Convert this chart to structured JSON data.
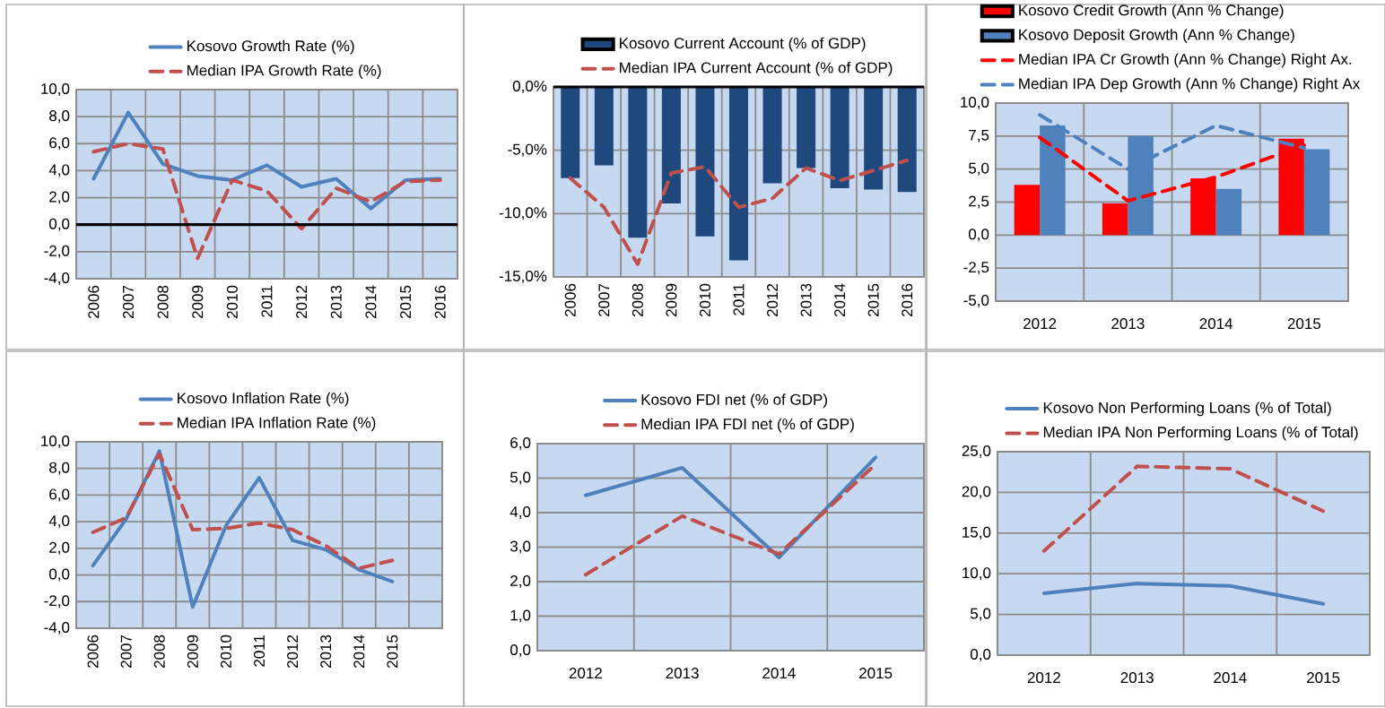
{
  "chart_data": [
    {
      "type": "line",
      "categories": [
        "2006",
        "2007",
        "2008",
        "2009",
        "2010",
        "2011",
        "2012",
        "2013",
        "2014",
        "2015",
        "2016"
      ],
      "series": [
        {
          "name": "Kosovo Growth Rate (%)",
          "color": "#4f81bd",
          "line_style": "solid",
          "values": [
            3.4,
            8.3,
            4.5,
            3.6,
            3.3,
            4.4,
            2.8,
            3.4,
            1.2,
            3.3,
            3.4
          ]
        },
        {
          "name": "Median IPA Growth Rate (%)",
          "color": "#c0504d",
          "line_style": "dashed",
          "values": [
            5.4,
            6.0,
            5.6,
            -2.5,
            3.3,
            2.5,
            -0.3,
            2.7,
            1.7,
            3.2,
            3.3
          ]
        }
      ],
      "ylim": [
        -4,
        10
      ],
      "yticks": [
        {
          "value": -4,
          "label": "-4,0"
        },
        {
          "value": -2,
          "label": "-2,0"
        },
        {
          "value": 0,
          "label": "0,0"
        },
        {
          "value": 2,
          "label": "2,0"
        },
        {
          "value": 4,
          "label": "4,0"
        },
        {
          "value": 6,
          "label": "6,0"
        },
        {
          "value": 8,
          "label": "8,0"
        },
        {
          "value": 10,
          "label": "10,0"
        }
      ],
      "ref_lines": [
        {
          "axis": "y",
          "value": 0,
          "color": "#000000"
        }
      ],
      "grid": true,
      "legend": "top"
    },
    {
      "type": "bar",
      "categories": [
        "2006",
        "2007",
        "2008",
        "2009",
        "2010",
        "2011",
        "2012",
        "2013",
        "2014",
        "2015",
        "2016"
      ],
      "series": [
        {
          "name": "Kosovo Current Account (% of GDP)",
          "color": "#1f497d",
          "values": [
            -7.2,
            -6.2,
            -11.9,
            -9.2,
            -11.8,
            -13.7,
            -7.6,
            -6.4,
            -8.0,
            -8.1,
            -8.3
          ]
        },
        {
          "name": "Median IPA Current Account (% of GDP)",
          "type": "line",
          "color": "#c0504d",
          "line_style": "dashed",
          "values": [
            -7.2,
            -9.5,
            -14.0,
            -6.8,
            -6.3,
            -9.5,
            -8.8,
            -6.4,
            -7.4,
            -6.6,
            -5.8
          ]
        }
      ],
      "ylim": [
        -15,
        0
      ],
      "yticks": [
        {
          "value": -15,
          "label": "-15,0%"
        },
        {
          "value": -10,
          "label": "-10,0%"
        },
        {
          "value": -5,
          "label": "-5,0%"
        },
        {
          "value": 0,
          "label": "0,0%"
        }
      ],
      "ref_lines": [
        {
          "axis": "y",
          "value": 0,
          "color": "#000000"
        }
      ],
      "grid": true,
      "legend": "top"
    },
    {
      "type": "bar",
      "categories": [
        "2012",
        "2013",
        "2014",
        "2015"
      ],
      "series": [
        {
          "name": "Kosovo Credit Growth (Ann % Change)",
          "color": "#ff0000",
          "values": [
            3.8,
            2.4,
            4.3,
            7.3
          ]
        },
        {
          "name": "Kosovo Deposit Growth (Ann % Change)",
          "color": "#4f81bd",
          "values": [
            8.3,
            7.5,
            3.5,
            6.5
          ]
        },
        {
          "name": "Median IPA Cr Growth (Ann % Change) Right Ax.",
          "type": "line",
          "color": "#ff0000",
          "line_style": "dashed",
          "values": [
            7.4,
            2.6,
            4.4,
            6.8
          ]
        },
        {
          "name": "Median IPA Dep Growth (Ann % Change) Right Ax",
          "type": "line",
          "color": "#4f81bd",
          "line_style": "dashed",
          "values": [
            9.1,
            5.0,
            8.3,
            6.6
          ]
        }
      ],
      "ylim": [
        -5,
        10
      ],
      "yticks": [
        {
          "value": -5,
          "label": "-5,0"
        },
        {
          "value": -2.5,
          "label": "-2,5"
        },
        {
          "value": 0,
          "label": "0,0"
        },
        {
          "value": 2.5,
          "label": "2,5"
        },
        {
          "value": 5,
          "label": "5,0"
        },
        {
          "value": 7.5,
          "label": "7,5"
        },
        {
          "value": 10,
          "label": "10,0"
        }
      ],
      "grid": true,
      "legend": "top"
    },
    {
      "type": "line",
      "categories": [
        "2006",
        "2007",
        "2008",
        "2009",
        "2010",
        "2011",
        "2012",
        "2013",
        "2014",
        "2015",
        null
      ],
      "series": [
        {
          "name": "Kosovo Inflation Rate (%)",
          "color": "#4f81bd",
          "line_style": "solid",
          "values": [
            0.7,
            4.2,
            9.3,
            -2.4,
            3.7,
            7.3,
            2.6,
            1.9,
            0.4,
            -0.5,
            null
          ]
        },
        {
          "name": "Median IPA Inflation Rate (%)",
          "color": "#c0504d",
          "line_style": "dashed",
          "values": [
            3.2,
            4.3,
            9.1,
            3.4,
            3.5,
            3.9,
            3.4,
            2.2,
            0.5,
            1.1,
            null
          ]
        }
      ],
      "ylim": [
        -4,
        10
      ],
      "yticks": [
        {
          "value": -4,
          "label": "-4,0"
        },
        {
          "value": -2,
          "label": "-2,0"
        },
        {
          "value": 0,
          "label": "0,0"
        },
        {
          "value": 2,
          "label": "2,0"
        },
        {
          "value": 4,
          "label": "4,0"
        },
        {
          "value": 6,
          "label": "6,0"
        },
        {
          "value": 8,
          "label": "8,0"
        },
        {
          "value": 10,
          "label": "10,0"
        }
      ],
      "grid": true,
      "legend": "top"
    },
    {
      "type": "line",
      "categories": [
        "2012",
        "2013",
        "2014",
        "2015"
      ],
      "series": [
        {
          "name": "Kosovo FDI net (% of GDP)",
          "color": "#4f81bd",
          "line_style": "solid",
          "values": [
            4.5,
            5.3,
            2.7,
            5.6
          ]
        },
        {
          "name": "Median IPA FDI net (% of GDP)",
          "color": "#c0504d",
          "line_style": "dashed",
          "values": [
            2.2,
            3.9,
            2.8,
            5.4
          ]
        }
      ],
      "ylim": [
        0,
        6
      ],
      "yticks": [
        {
          "value": 0,
          "label": "0,0"
        },
        {
          "value": 1,
          "label": "1,0"
        },
        {
          "value": 2,
          "label": "2,0"
        },
        {
          "value": 3,
          "label": "3,0"
        },
        {
          "value": 4,
          "label": "4,0"
        },
        {
          "value": 5,
          "label": "5,0"
        },
        {
          "value": 6,
          "label": "6,0"
        }
      ],
      "grid": true,
      "legend": "top"
    },
    {
      "type": "line",
      "categories": [
        "2012",
        "2013",
        "2014",
        "2015"
      ],
      "series": [
        {
          "name": "Kosovo Non Performing Loans (% of Total)",
          "color": "#4f81bd",
          "line_style": "solid",
          "values": [
            7.6,
            8.8,
            8.5,
            6.3
          ]
        },
        {
          "name": "Median IPA Non Performing Loans (% of Total)",
          "color": "#c0504d",
          "line_style": "dashed",
          "values": [
            12.8,
            23.2,
            22.9,
            17.7
          ]
        }
      ],
      "ylim": [
        0,
        25
      ],
      "yticks": [
        {
          "value": 0,
          "label": "0,0"
        },
        {
          "value": 5,
          "label": "5,0"
        },
        {
          "value": 10,
          "label": "10,0"
        },
        {
          "value": 15,
          "label": "15,0"
        },
        {
          "value": 20,
          "label": "20,0"
        },
        {
          "value": 25,
          "label": "25,0"
        }
      ],
      "grid": true,
      "legend": "top"
    }
  ]
}
